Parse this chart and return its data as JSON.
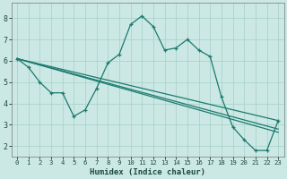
{
  "xlabel": "Humidex (Indice chaleur)",
  "bg_color": "#cce8e4",
  "grid_color": "#aad4cc",
  "line_color": "#1a7a6e",
  "xlim": [
    -0.5,
    23.5
  ],
  "ylim": [
    1.5,
    8.7
  ],
  "yticks": [
    2,
    3,
    4,
    5,
    6,
    7,
    8
  ],
  "xticks": [
    0,
    1,
    2,
    3,
    4,
    5,
    6,
    7,
    8,
    9,
    10,
    11,
    12,
    13,
    14,
    15,
    16,
    17,
    18,
    19,
    20,
    21,
    22,
    23
  ],
  "lines": [
    {
      "x": [
        0,
        1,
        2,
        3,
        4,
        5,
        6,
        7,
        8,
        9,
        10,
        11,
        12,
        13,
        14,
        15,
        16,
        17,
        18,
        19,
        20,
        21,
        22,
        23
      ],
      "y": [
        6.1,
        5.7,
        5.0,
        4.5,
        4.5,
        3.4,
        3.7,
        4.7,
        5.9,
        6.3,
        7.7,
        8.1,
        7.6,
        6.5,
        6.6,
        7.0,
        6.5,
        6.2,
        4.3,
        2.9,
        2.3,
        1.8,
        1.8,
        3.2
      ],
      "marker": true
    },
    {
      "x": [
        0,
        23
      ],
      "y": [
        6.1,
        2.65
      ],
      "marker": false
    },
    {
      "x": [
        0,
        23
      ],
      "y": [
        6.1,
        2.8
      ],
      "marker": false
    },
    {
      "x": [
        0,
        23
      ],
      "y": [
        6.1,
        3.2
      ],
      "marker": false
    }
  ]
}
